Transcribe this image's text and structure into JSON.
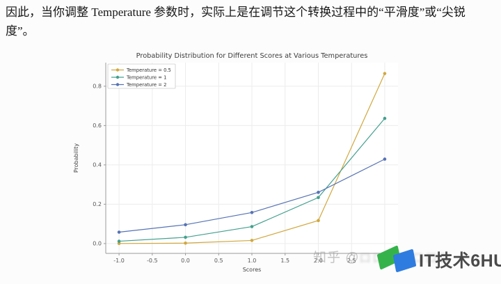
{
  "page": {
    "paragraph_lines": [
      "因此，当你调整 Temperature 参数时，实际上是在调节这个转换过程中的“平滑度”或“尖锐",
      "度”。"
    ]
  },
  "chart_data": {
    "type": "line",
    "title": "Probability Distribution for Different Scores at Various Temperatures",
    "xlabel": "Scores",
    "ylabel": "Probability",
    "x": [
      -1,
      0,
      1,
      2,
      3
    ],
    "series": [
      {
        "name": "Temperature = 0.5",
        "color": "#d1a83e",
        "values": [
          0.0003,
          0.0021,
          0.0158,
          0.117,
          0.8647
        ]
      },
      {
        "name": "Temperature = 1",
        "color": "#43a08e",
        "values": [
          0.0117,
          0.0317,
          0.0861,
          0.2341,
          0.6364
        ]
      },
      {
        "name": "Temperature = 2",
        "color": "#5673b5",
        "values": [
          0.058,
          0.0957,
          0.1578,
          0.2603,
          0.4293
        ]
      }
    ],
    "xticks": [
      -1.0,
      -0.5,
      0.0,
      0.5,
      1.0,
      1.5,
      2.0,
      2.5,
      3.0
    ],
    "yticks": [
      0.0,
      0.2,
      0.4,
      0.6,
      0.8
    ],
    "xlim": [
      -1.2,
      3.2
    ],
    "ylim": [
      -0.05,
      0.92
    ],
    "grid": true,
    "legend_position": "upper left",
    "colors": {
      "grid": "#ececec",
      "spine": "#9a9a9a",
      "tick_label": "#555555",
      "title": "#3d3d3d",
      "legend_border": "#cccccc"
    }
  },
  "watermark": {
    "zhihu_prefix": "知乎 @",
    "zhihu_blurred": "口口口口口口口",
    "logo_text": "IT技术6HU",
    "logo_green": "#35b34a",
    "logo_blue": "#2e7ce0"
  }
}
